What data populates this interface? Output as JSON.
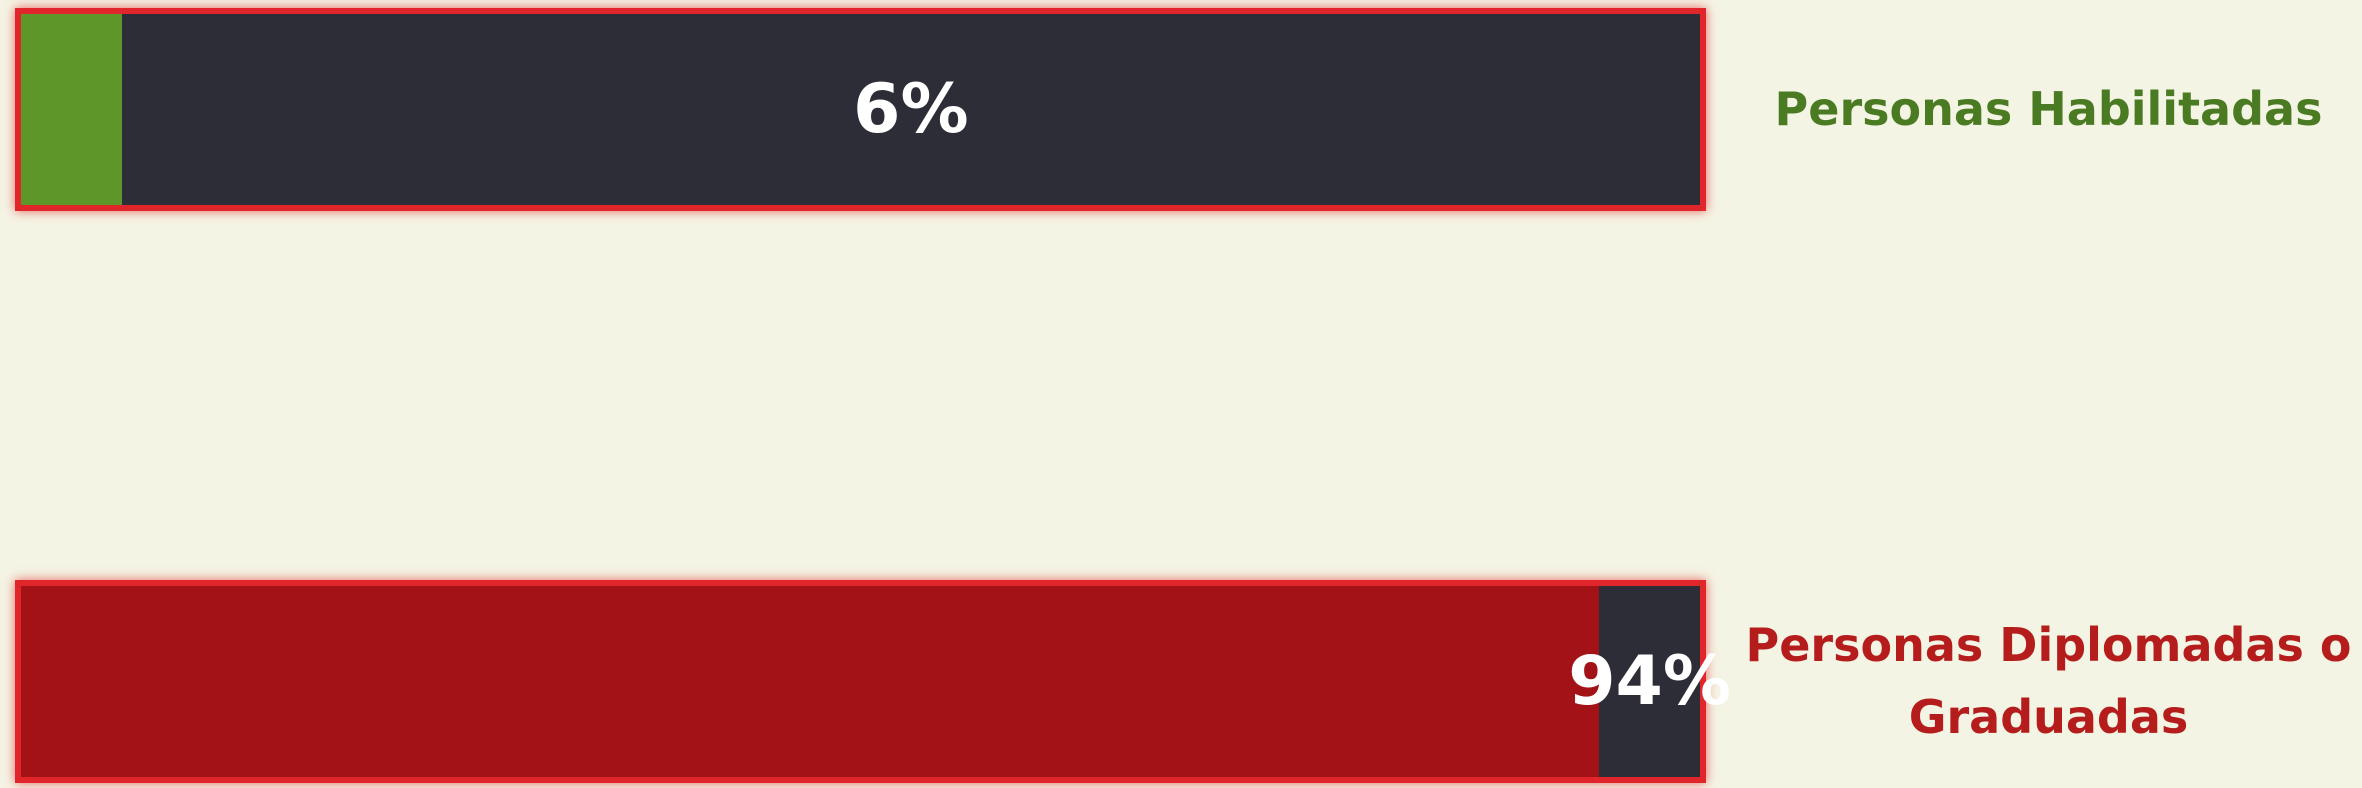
{
  "chart_data": {
    "type": "progress",
    "xlim": [
      0,
      100
    ],
    "bars": [
      {
        "label": "Personas Habilitadas",
        "value": 6,
        "value_label": "6%",
        "color": "#5e962a",
        "label_color": "#4a7a22"
      },
      {
        "label": "Personas Diplomadas o Graduadas",
        "value": 94,
        "value_label": "94%",
        "color": "#a31216",
        "label_color": "#b51d1d"
      }
    ]
  }
}
